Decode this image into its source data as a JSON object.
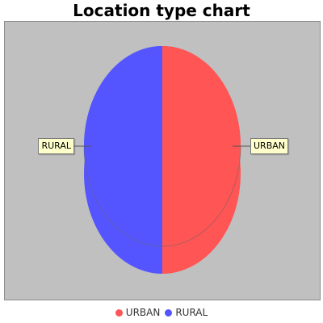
{
  "chart_data": {
    "type": "pie",
    "title": "Location type chart",
    "categories": [
      "URBAN",
      "RURAL"
    ],
    "values": [
      50,
      50
    ],
    "colors": [
      "#ff5555",
      "#5555ff"
    ],
    "three_d": true,
    "legend_position": "bottom",
    "plot_background": "#c0c0c0",
    "label_background": "#ffffcc"
  },
  "legend": {
    "items": [
      {
        "label": "URBAN",
        "color": "#ff5555"
      },
      {
        "label": "RURAL",
        "color": "#5555ff"
      }
    ]
  }
}
